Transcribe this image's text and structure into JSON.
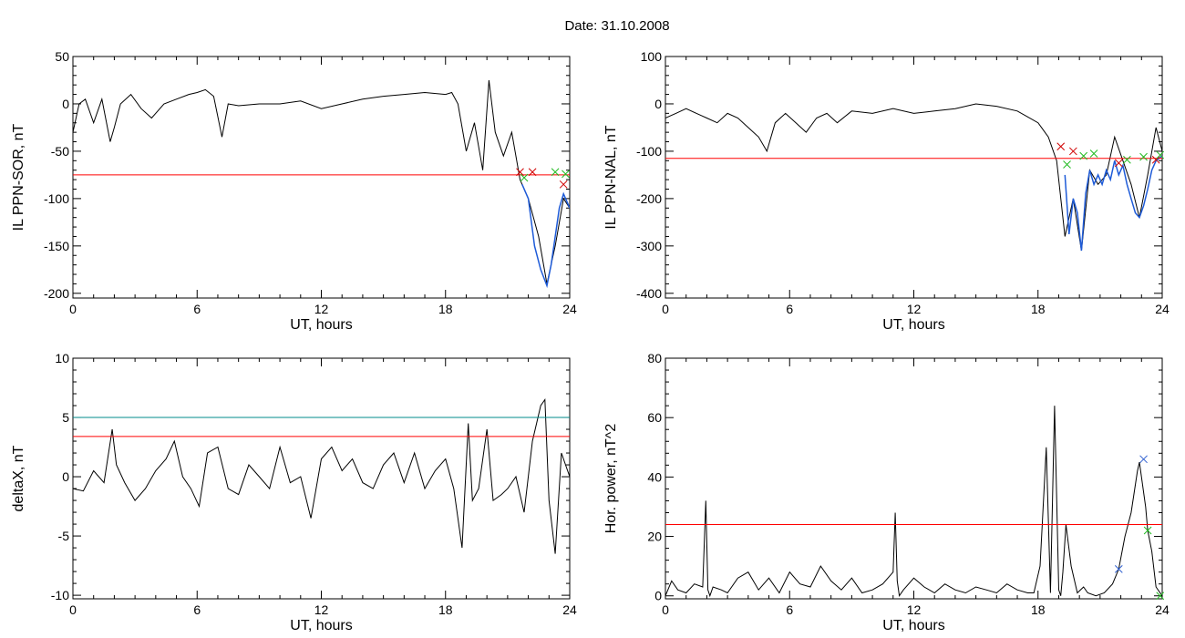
{
  "page_title": "Date:  31.10.2008",
  "colors": {
    "trace": "#000000",
    "threshold": "#ff0000",
    "threshold_alt": "#008b8b",
    "segment": "#1e5bd8",
    "marker_red": "#d00000",
    "marker_green": "#22bb22",
    "marker_blue": "#3060d0"
  },
  "chart_data": [
    {
      "id": "ppn-sor",
      "type": "line",
      "xlabel": "UT, hours",
      "ylabel": "IL PPN-SOR, nT",
      "xlim": [
        0,
        24
      ],
      "ylim": [
        -205,
        50
      ],
      "xticks": [
        0,
        6,
        12,
        18,
        24
      ],
      "yticks": [
        50,
        0,
        -50,
        -100,
        -150,
        -200
      ],
      "grid": false,
      "series": [
        {
          "x": [
            0,
            0.3,
            0.6,
            1.0,
            1.4,
            1.8,
            2.0,
            2.3,
            2.8,
            3.3,
            3.8,
            4.4,
            5.0,
            5.6,
            6.0,
            6.4,
            6.8,
            7.2,
            7.5,
            8.0,
            9.0,
            10.0,
            11.0,
            12.0,
            13.0,
            14.0,
            15.0,
            16.0,
            17.0,
            18.0,
            18.3,
            18.6,
            19.0,
            19.4,
            19.8,
            20.1,
            20.4,
            20.8,
            21.2,
            21.6,
            22.0,
            22.5,
            22.9,
            23.3,
            23.7,
            24.0
          ],
          "y": [
            -30,
            0,
            5,
            -20,
            5,
            -40,
            -25,
            0,
            10,
            -5,
            -15,
            0,
            5,
            10,
            12,
            15,
            8,
            -35,
            0,
            -2,
            0,
            0,
            3,
            -5,
            0,
            5,
            8,
            10,
            12,
            10,
            12,
            0,
            -50,
            -20,
            -70,
            25,
            -30,
            -55,
            -30,
            -80,
            -100,
            -140,
            -190,
            -150,
            -100,
            -110
          ]
        }
      ],
      "segments": [
        {
          "x": [
            21.7,
            22.0,
            22.3,
            22.6,
            22.9,
            23.1,
            23.3,
            23.5,
            23.7,
            24.0
          ],
          "y": [
            -85,
            -100,
            -150,
            -175,
            -192,
            -170,
            -140,
            -110,
            -95,
            -110
          ]
        }
      ],
      "thresholds": [
        {
          "y": -75,
          "color": "red"
        }
      ],
      "markers": [
        {
          "x": 21.6,
          "y": -72,
          "color": "red"
        },
        {
          "x": 21.8,
          "y": -78,
          "color": "green"
        },
        {
          "x": 22.2,
          "y": -72,
          "color": "red"
        },
        {
          "x": 23.3,
          "y": -72,
          "color": "green"
        },
        {
          "x": 23.7,
          "y": -85,
          "color": "red"
        },
        {
          "x": 23.8,
          "y": -74,
          "color": "green"
        }
      ]
    },
    {
      "id": "ppn-nal",
      "type": "line",
      "xlabel": "UT, hours",
      "ylabel": "IL PPN-NAL, nT",
      "xlim": [
        0,
        24
      ],
      "ylim": [
        -410,
        100
      ],
      "xticks": [
        0,
        6,
        12,
        18,
        24
      ],
      "yticks": [
        100,
        0,
        -100,
        -200,
        -300,
        -400
      ],
      "grid": false,
      "series": [
        {
          "x": [
            0,
            0.5,
            1.0,
            1.5,
            2.0,
            2.5,
            3.0,
            3.5,
            4.0,
            4.5,
            4.9,
            5.3,
            5.8,
            6.3,
            6.8,
            7.3,
            7.8,
            8.3,
            9.0,
            10.0,
            11.0,
            12.0,
            13.0,
            14.0,
            15.0,
            16.0,
            17.0,
            18.0,
            18.5,
            18.9,
            19.3,
            19.7,
            20.1,
            20.5,
            20.9,
            21.3,
            21.7,
            22.1,
            22.5,
            22.9,
            23.3,
            23.7,
            24.0
          ],
          "y": [
            -30,
            -20,
            -10,
            -20,
            -30,
            -40,
            -20,
            -30,
            -50,
            -70,
            -100,
            -40,
            -20,
            -40,
            -60,
            -30,
            -20,
            -40,
            -15,
            -20,
            -10,
            -20,
            -15,
            -10,
            0,
            -5,
            -15,
            -40,
            -70,
            -120,
            -280,
            -200,
            -310,
            -140,
            -170,
            -150,
            -70,
            -120,
            -170,
            -240,
            -150,
            -50,
            -100
          ]
        }
      ],
      "segments": [
        {
          "x": [
            19.3,
            19.5,
            19.7,
            19.9,
            20.1,
            20.3,
            20.5,
            20.7,
            20.9,
            21.1,
            21.3,
            21.5,
            21.7,
            21.9,
            22.1,
            22.3,
            22.5,
            22.7,
            22.9,
            23.1,
            23.3,
            23.5,
            23.7,
            24.0
          ],
          "y": [
            -150,
            -275,
            -200,
            -230,
            -310,
            -190,
            -140,
            -170,
            -150,
            -170,
            -140,
            -160,
            -120,
            -150,
            -130,
            -170,
            -200,
            -230,
            -240,
            -215,
            -180,
            -140,
            -120,
            -110
          ]
        }
      ],
      "thresholds": [
        {
          "y": -115,
          "color": "red"
        }
      ],
      "markers": [
        {
          "x": 19.1,
          "y": -90,
          "color": "red"
        },
        {
          "x": 19.4,
          "y": -128,
          "color": "green"
        },
        {
          "x": 19.7,
          "y": -100,
          "color": "red"
        },
        {
          "x": 20.2,
          "y": -110,
          "color": "green"
        },
        {
          "x": 20.7,
          "y": -105,
          "color": "green"
        },
        {
          "x": 21.9,
          "y": -125,
          "color": "red"
        },
        {
          "x": 22.3,
          "y": -118,
          "color": "green"
        },
        {
          "x": 23.1,
          "y": -112,
          "color": "green"
        },
        {
          "x": 23.7,
          "y": -118,
          "color": "red"
        },
        {
          "x": 23.9,
          "y": -108,
          "color": "green"
        }
      ]
    },
    {
      "id": "deltax",
      "type": "line",
      "xlabel": "UT, hours",
      "ylabel": "deltaX, nT",
      "xlim": [
        0,
        24
      ],
      "ylim": [
        -10.3,
        10
      ],
      "xticks": [
        0,
        6,
        12,
        18,
        24
      ],
      "yticks": [
        10,
        5,
        0,
        -5,
        -10
      ],
      "grid": false,
      "series": [
        {
          "x": [
            0,
            0.5,
            1.0,
            1.5,
            1.9,
            2.1,
            2.5,
            3.0,
            3.5,
            4.0,
            4.5,
            4.9,
            5.3,
            5.7,
            6.1,
            6.5,
            7.0,
            7.5,
            8.0,
            8.5,
            9.0,
            9.5,
            10.0,
            10.5,
            11.0,
            11.5,
            12.0,
            12.5,
            13.0,
            13.5,
            14.0,
            14.5,
            15.0,
            15.5,
            16.0,
            16.5,
            17.0,
            17.5,
            18.0,
            18.4,
            18.8,
            19.1,
            19.3,
            19.6,
            20.0,
            20.3,
            20.7,
            21.0,
            21.4,
            21.8,
            22.2,
            22.6,
            22.8,
            23.0,
            23.3,
            23.6,
            23.9,
            24.0
          ],
          "y": [
            -1,
            -1.2,
            0.5,
            -0.5,
            4,
            1,
            -0.5,
            -2,
            -1,
            0.5,
            1.5,
            3,
            0,
            -1,
            -2.5,
            2,
            2.5,
            -1,
            -1.5,
            1,
            0,
            -1,
            2.5,
            -0.5,
            0,
            -3.5,
            1.5,
            2.5,
            0.5,
            1.5,
            -0.5,
            -1,
            1,
            2,
            -0.5,
            2,
            -1,
            0.5,
            1.5,
            -1,
            -6,
            4.5,
            -2,
            -1,
            4,
            -2,
            -1.5,
            -1,
            0,
            -3,
            3,
            6,
            6.5,
            -2,
            -6.5,
            2,
            0.5,
            0
          ]
        }
      ],
      "thresholds": [
        {
          "y": 5,
          "color": "teal"
        },
        {
          "y": 3.4,
          "color": "red"
        }
      ]
    },
    {
      "id": "hor-power",
      "type": "line",
      "xlabel": "UT, hours",
      "ylabel": "Hor. power, nT^2",
      "xlim": [
        0,
        24
      ],
      "ylim": [
        -1,
        80
      ],
      "xticks": [
        0,
        6,
        12,
        18,
        24
      ],
      "yticks": [
        80,
        60,
        40,
        20,
        0
      ],
      "grid": false,
      "series": [
        {
          "x": [
            0,
            0.3,
            0.6,
            1.0,
            1.4,
            1.8,
            1.95,
            2.05,
            2.15,
            2.3,
            2.7,
            3.0,
            3.5,
            4.0,
            4.5,
            5.0,
            5.5,
            6.0,
            6.5,
            7.0,
            7.5,
            8.0,
            8.5,
            9.0,
            9.5,
            10.0,
            10.5,
            11.0,
            11.1,
            11.2,
            11.3,
            11.5,
            12.0,
            12.5,
            13.0,
            13.5,
            14.0,
            14.5,
            15.0,
            15.5,
            16.0,
            16.5,
            17.0,
            17.5,
            17.8,
            18.1,
            18.4,
            18.6,
            18.8,
            19.0,
            19.1,
            19.2,
            19.35,
            19.6,
            19.9,
            20.2,
            20.4,
            20.8,
            21.2,
            21.6,
            21.9,
            22.2,
            22.5,
            22.8,
            22.9,
            23.2,
            23.3,
            23.5,
            23.7,
            24.0
          ],
          "y": [
            0,
            5,
            2,
            1,
            4,
            3,
            32,
            2,
            0,
            3,
            2,
            1,
            6,
            8,
            2,
            6,
            1,
            8,
            4,
            3,
            10,
            5,
            2,
            6,
            1,
            2,
            4,
            8,
            28,
            5,
            0,
            2,
            6,
            3,
            1,
            4,
            2,
            1,
            3,
            2,
            1,
            4,
            2,
            1,
            1,
            10,
            50,
            1,
            64,
            2,
            0,
            8,
            24,
            10,
            1,
            3,
            1,
            0,
            1,
            4,
            9,
            20,
            28,
            42,
            45,
            30,
            22,
            15,
            3,
            0
          ]
        }
      ],
      "thresholds": [
        {
          "y": 24,
          "color": "red"
        }
      ],
      "markers": [
        {
          "x": 21.9,
          "y": 9,
          "color": "blue"
        },
        {
          "x": 23.1,
          "y": 46,
          "color": "blue"
        },
        {
          "x": 23.3,
          "y": 22,
          "color": "green"
        },
        {
          "x": 23.9,
          "y": 0,
          "color": "green"
        }
      ]
    }
  ]
}
